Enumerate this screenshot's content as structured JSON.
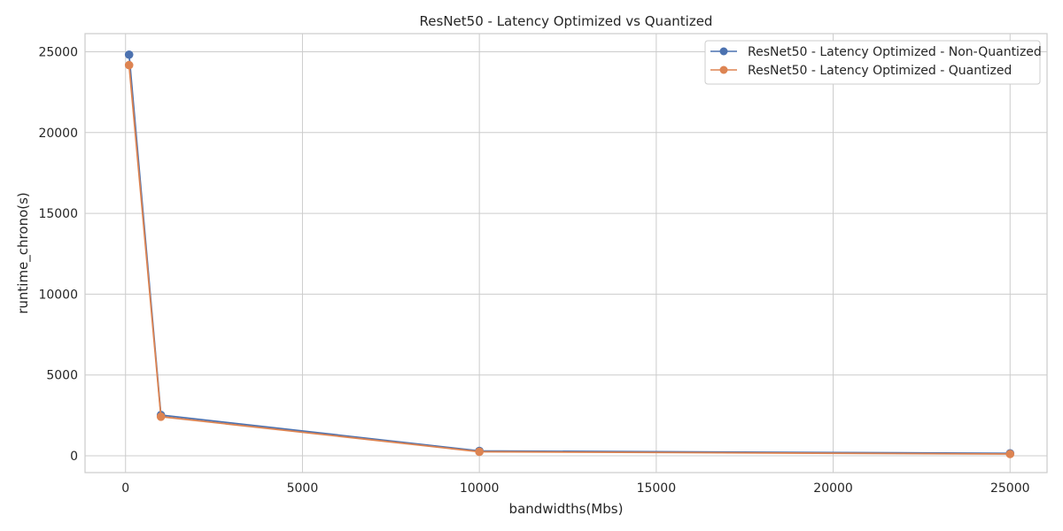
{
  "chart_data": {
    "type": "line",
    "title": "ResNet50 - Latency Optimized vs Quantized",
    "xlabel": "bandwidths(Mbs)",
    "ylabel": "runtime_chrono(s)",
    "xlim": [
      -1145,
      26045
    ],
    "ylim": [
      -1040,
      26120
    ],
    "xticks": [
      0,
      5000,
      10000,
      15000,
      20000,
      25000
    ],
    "yticks": [
      0,
      5000,
      10000,
      15000,
      20000,
      25000
    ],
    "grid": true,
    "legend_position": "top-right",
    "series": [
      {
        "name": "ResNet50 - Latency Optimized - Non-Quantized",
        "color": "#4c72b0",
        "x": [
          100,
          1000,
          10000,
          25000
        ],
        "y": [
          24820,
          2520,
          300,
          150
        ]
      },
      {
        "name": "ResNet50 - Latency Optimized - Quantized",
        "color": "#dd8452",
        "x": [
          100,
          1000,
          10000,
          25000
        ],
        "y": [
          24170,
          2420,
          250,
          110
        ]
      }
    ]
  }
}
